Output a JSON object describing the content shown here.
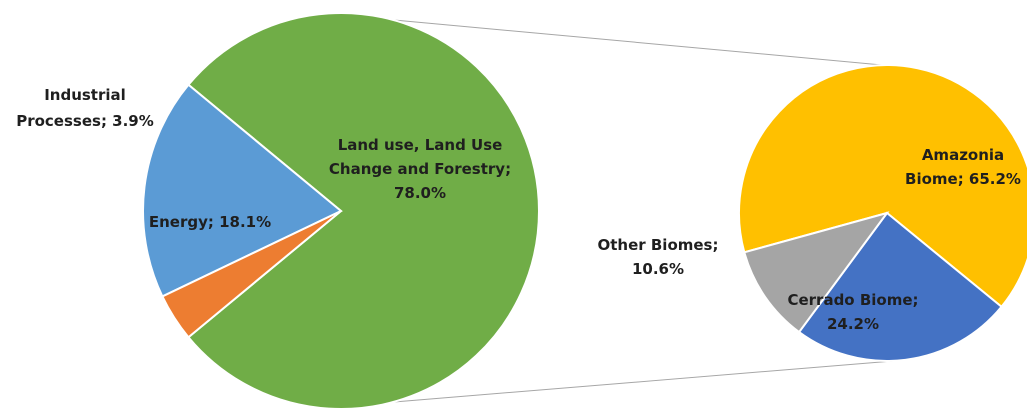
{
  "chart_data": [
    {
      "type": "pie",
      "series": [
        {
          "name": "",
          "slices": [
            {
              "label": "Land use, Land Use Change and Forestry",
              "value": 78.0,
              "display": [
                "Land use, Land Use",
                "Change and Forestry;",
                "78.0%"
              ],
              "color": "#70ad47"
            },
            {
              "label": "Energy",
              "value": 18.1,
              "display": [
                "Energy; 18.1%"
              ],
              "color": "#5b9bd5"
            },
            {
              "label": "Industrial Processes",
              "value": 3.9,
              "display": [
                "Industrial",
                "Processes; 3.9%"
              ],
              "color": "#ed7d31"
            }
          ]
        }
      ],
      "exploded_slice": "Land use, Land Use Change and Forestry"
    },
    {
      "type": "pie",
      "series": [
        {
          "name": "",
          "slices": [
            {
              "label": "Amazonia Biome",
              "value": 65.2,
              "display": [
                "Amazonia",
                "Biome; 65.2%"
              ],
              "color": "#ffc000"
            },
            {
              "label": "Cerrado Biome",
              "value": 24.2,
              "display": [
                "Cerrado Biome;",
                "24.2%"
              ],
              "color": "#4472c4"
            },
            {
              "label": "Other Biomes",
              "value": 10.6,
              "display": [
                "Other Biomes;",
                "10.6%"
              ],
              "color": "#a5a5a5"
            }
          ]
        }
      ]
    }
  ]
}
